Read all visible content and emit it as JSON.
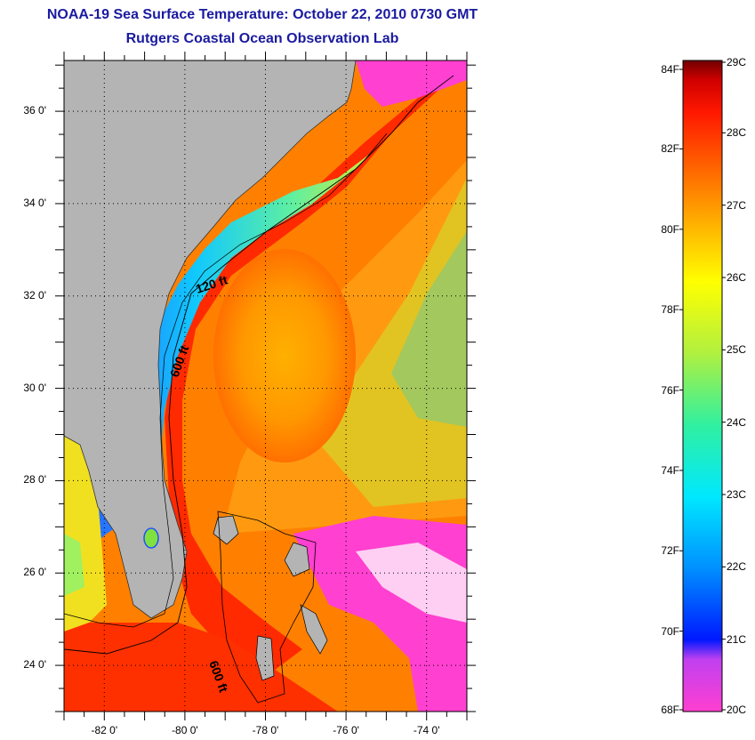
{
  "title": {
    "line1": "NOAA-19 Sea Surface Temperature:  October 22, 2010 0730 GMT",
    "line2": "Rutgers Coastal Ocean Observation Lab"
  },
  "axes": {
    "latitude_labels": [
      "36 0'",
      "34 0'",
      "32 0'",
      "30 0'",
      "28 0'",
      "26 0'",
      "24 0'"
    ],
    "longitude_labels": [
      "-82 0'",
      "-80 0'",
      "-78 0'",
      "-76 0'",
      "-74 0'"
    ],
    "lat_values": [
      36,
      34,
      32,
      30,
      28,
      26,
      24
    ],
    "lon_values": [
      -82,
      -80,
      -78,
      -76,
      -74
    ],
    "lat_range": [
      23,
      37.1
    ],
    "lon_range": [
      -83,
      -73
    ]
  },
  "contours": {
    "label_120": "120 ft",
    "label_600a": "600 ft",
    "label_600b": "600 ft"
  },
  "colorbar": {
    "fahrenheit_labels": [
      "84F",
      "82F",
      "80F",
      "78F",
      "76F",
      "74F",
      "72F",
      "70F",
      "68F"
    ],
    "fahrenheit_values": [
      84,
      82,
      80,
      78,
      76,
      74,
      72,
      70,
      68
    ],
    "celsius_labels": [
      "29C",
      "28C",
      "27C",
      "26C",
      "25C",
      "24C",
      "23C",
      "22C",
      "21C",
      "20C"
    ],
    "celsius_values": [
      29,
      28,
      27,
      26,
      25,
      24,
      23,
      22,
      21,
      20
    ],
    "colors": [
      "#ff3fd0",
      "#c040f0",
      "#0018ff",
      "#0090ff",
      "#00e8ff",
      "#30f0a0",
      "#b0f040",
      "#ffff00",
      "#ffb000",
      "#ff6000",
      "#ff1800",
      "#d00000",
      "#700000"
    ]
  },
  "palette": {
    "land": "#b4b4b4",
    "warm": "#ff3a00",
    "orange": "#ff8a00",
    "title_color": "#1a1aa0"
  }
}
